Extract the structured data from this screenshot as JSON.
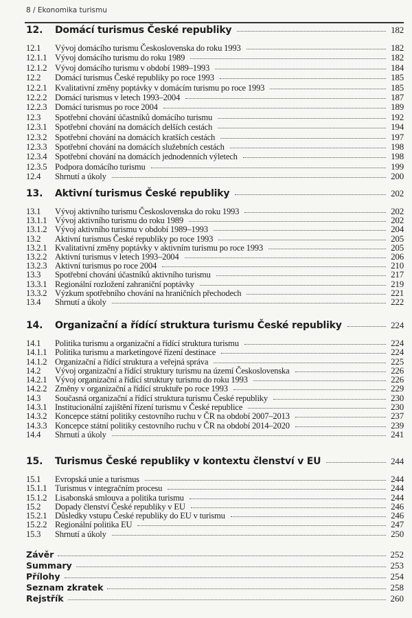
{
  "header": {
    "running_title": "8  /  Ekonomika turismu"
  },
  "chapters": [
    {
      "num": "12.",
      "title": "Domácí turismus České republiky",
      "page": "182",
      "entries": [
        {
          "num": "12.1",
          "title": "Vývoj domácího turismu Československa do roku 1993",
          "page": "182"
        },
        {
          "num": "12.1.1",
          "title": "Vývoj domácího turismu do roku 1989",
          "page": "182"
        },
        {
          "num": "12.1.2",
          "title": "Vývoj domácího turismu v období 1989–1993",
          "page": "184"
        },
        {
          "num": "12.2",
          "title": "Domácí turismus České republiky po roce 1993",
          "page": "185"
        },
        {
          "num": "12.2.1",
          "title": "Kvalitativní změny poptávky v domácím turismu po roce 1993",
          "page": "185"
        },
        {
          "num": "12.2.2",
          "title": "Domácí turismus v letech 1993–2004",
          "page": "187"
        },
        {
          "num": "12.2.3",
          "title": "Domácí turismus po roce 2004",
          "page": "189"
        },
        {
          "num": "12.3",
          "title": "Spotřební chování účastníků domácího turismu",
          "page": "192"
        },
        {
          "num": "12.3.1",
          "title": "Spotřební chování na domácích delších cestách",
          "page": "194"
        },
        {
          "num": "12.3.2",
          "title": "Spotřební chování na domácích kratších cestách",
          "page": "197"
        },
        {
          "num": "12.3.3",
          "title": "Spotřební chování na domácích služebních cestách",
          "page": "198"
        },
        {
          "num": "12.3.4",
          "title": "Spotřební chování na domácích jednodenních výletech",
          "page": "198"
        },
        {
          "num": "12.3.5",
          "title": "Podpora domácího turismu",
          "page": "199"
        },
        {
          "num": "12.4",
          "title": "Shrnutí a úkoly",
          "page": "200"
        }
      ]
    },
    {
      "num": "13.",
      "title": "Aktivní turismus České republiky",
      "page": "202",
      "entries": [
        {
          "num": "13.1",
          "title": "Vývoj aktivního turismu Československa do roku 1993",
          "page": "202"
        },
        {
          "num": "13.1.1",
          "title": "Vývoj aktivního turismu do roku 1989",
          "page": "202"
        },
        {
          "num": "13.1.2",
          "title": "Vývoj aktivního turismu v období 1989–1993",
          "page": "204"
        },
        {
          "num": "13.2",
          "title": "Aktivní turismus České republiky po roce 1993",
          "page": "205"
        },
        {
          "num": "13.2.1",
          "title": "Kvalitativní změny poptávky v aktivním turismu po roce 1993",
          "page": "205"
        },
        {
          "num": "13.2.2",
          "title": "Aktivní turismus v letech 1993–2004",
          "page": "206"
        },
        {
          "num": "13.2.3",
          "title": "Aktivní turismus po roce 2004",
          "page": "210"
        },
        {
          "num": "13.3",
          "title": "Spotřební chování účastníků aktivního turismu",
          "page": "217"
        },
        {
          "num": "13.3.1",
          "title": "Regionální rozložení zahraniční poptávky",
          "page": "219"
        },
        {
          "num": "13.3.2",
          "title": "Výzkum spotřebního chování na hraničních přechodech",
          "page": "221"
        },
        {
          "num": "13.4",
          "title": "Shrnutí a úkoly",
          "page": "222"
        }
      ]
    },
    {
      "num": "14.",
      "title": "Organizační a řídící struktura turismu České republiky",
      "page": "224",
      "entries": [
        {
          "num": "14.1",
          "title": "Politika turismu a organizační a řídící struktura turismu",
          "page": "224"
        },
        {
          "num": "14.1.1",
          "title": "Politika turismu a marketingové řízení destinace",
          "page": "224"
        },
        {
          "num": "14.1.2",
          "title": "Organizační a řídící struktura a veřejná správa",
          "page": "225"
        },
        {
          "num": "14.2",
          "title": "Vývoj organizační a řídící struktury turismu na území Československa",
          "page": "226"
        },
        {
          "num": "14.2.1",
          "title": "Vývoj organizační a řídící struktury turismu do roku 1993",
          "page": "226"
        },
        {
          "num": "14.2.2",
          "title": "Změny v organizační a řídící struktuře po roce 1993",
          "page": "229"
        },
        {
          "num": "14.3",
          "title": "Současná organizační a řídící struktura turismu České republiky",
          "page": "230"
        },
        {
          "num": "14.3.1",
          "title": "Institucionální zajištění řízení turismu v České republice",
          "page": "230"
        },
        {
          "num": "14.3.2",
          "title": "Koncepce státní politiky cestovního ruchu v ČR na období 2007–2013",
          "page": "237"
        },
        {
          "num": "14.3.3",
          "title": "Koncepce státní politiky cestovního ruchu v ČR na období 2014–2020",
          "page": "239"
        },
        {
          "num": "14.4",
          "title": "Shrnutí a úkoly",
          "page": "241"
        }
      ]
    },
    {
      "num": "15.",
      "title": "Turismus České republiky v kontextu členství v EU",
      "page": "244",
      "entries": [
        {
          "num": "15.1",
          "title": "Evropská unie a turismus",
          "page": "244"
        },
        {
          "num": "15.1.1",
          "title": "Turismus v integračním procesu",
          "page": "244"
        },
        {
          "num": "15.1.2",
          "title": "Lisabonská smlouva a politika turismu",
          "page": "244"
        },
        {
          "num": "15.2",
          "title": "Dopady členství České republiky v EU",
          "page": "246"
        },
        {
          "num": "15.2.1",
          "title": "Důsledky vstupu České republiky do EU v turismu",
          "page": "246"
        },
        {
          "num": "15.2.2",
          "title": "Regionální politika EU",
          "page": "247"
        },
        {
          "num": "15.3",
          "title": "Shrnutí a úkoly",
          "page": "250"
        }
      ]
    }
  ],
  "back_matter": [
    {
      "title": "Závěr",
      "page": "252"
    },
    {
      "title": "Summary",
      "page": "253"
    },
    {
      "title": "Přílohy",
      "page": "254"
    },
    {
      "title": "Seznam zkratek",
      "page": "258"
    },
    {
      "title": "Rejstřík",
      "page": "260"
    }
  ]
}
